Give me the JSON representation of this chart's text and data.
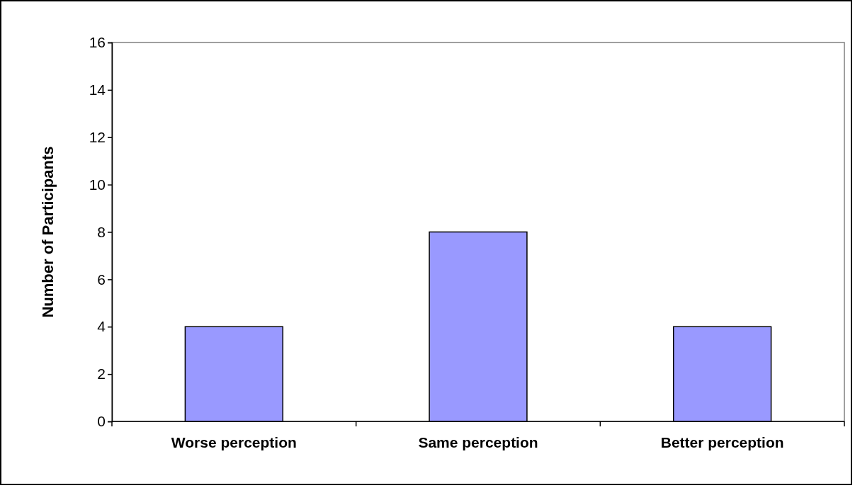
{
  "chart_data": {
    "type": "bar",
    "ylabel": "Number of Participants",
    "categories": [
      "Worse perception",
      "Same perception",
      "Better perception"
    ],
    "values": [
      4,
      8,
      4
    ],
    "color": "#9999ff",
    "ylim": [
      0,
      16
    ],
    "yticks": [
      0,
      2,
      4,
      6,
      8,
      10,
      12,
      14,
      16
    ],
    "grid": false
  }
}
